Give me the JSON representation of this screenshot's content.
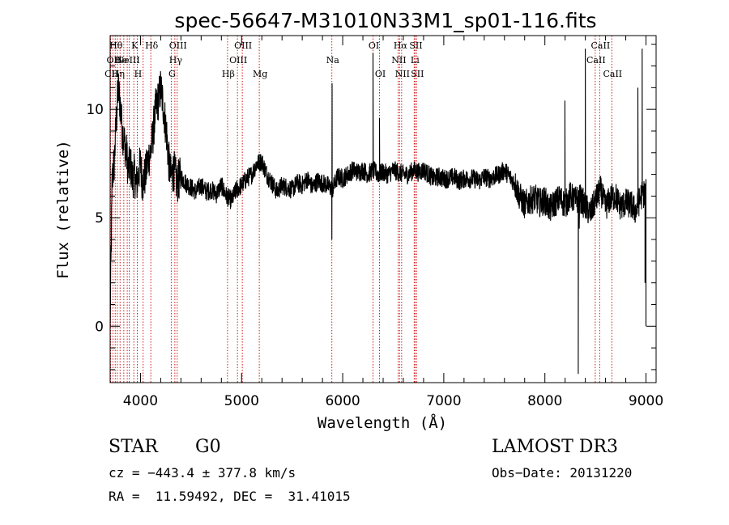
{
  "chart_data": {
    "type": "line",
    "title": "spec-56647-M31010N33M1_sp01-116.fits",
    "xlabel": "Wavelength (Å)",
    "ylabel": "Flux (relative)",
    "xlim": [
      3700,
      9100
    ],
    "ylim": [
      -2.6,
      13.4
    ],
    "xticks": [
      4000,
      5000,
      6000,
      7000,
      8000,
      9000
    ],
    "yticks": [
      0,
      5,
      10
    ],
    "grid": false,
    "spectrum_anchors": {
      "x": [
        3700,
        3720,
        3740,
        3760,
        3780,
        3800,
        3820,
        3840,
        3860,
        3880,
        3900,
        3920,
        3940,
        3960,
        3980,
        4000,
        4020,
        4050,
        4080,
        4100,
        4120,
        4150,
        4180,
        4200,
        4230,
        4260,
        4280,
        4300,
        4330,
        4360,
        4400,
        4450,
        4500,
        4550,
        4600,
        4650,
        4700,
        4750,
        4800,
        4850,
        4900,
        4950,
        5000,
        5050,
        5100,
        5150,
        5200,
        5250,
        5300,
        5350,
        5400,
        5450,
        5500,
        5550,
        5600,
        5650,
        5700,
        5750,
        5800,
        5850,
        5900,
        5950,
        6000,
        6050,
        6100,
        6150,
        6200,
        6250,
        6300,
        6350,
        6400,
        6450,
        6500,
        6550,
        6600,
        6650,
        6700,
        6750,
        6800,
        6850,
        6900,
        6950,
        7000,
        7050,
        7100,
        7150,
        7200,
        7250,
        7300,
        7350,
        7400,
        7450,
        7500,
        7550,
        7600,
        7650,
        7700,
        7750,
        7800,
        7850,
        7900,
        7950,
        8000,
        8050,
        8100,
        8150,
        8200,
        8250,
        8300,
        8350,
        8400,
        8450,
        8500,
        8550,
        8600,
        8650,
        8700,
        8750,
        8800,
        8850,
        8900,
        8950,
        9000
      ],
      "y": [
        0,
        6.8,
        7.5,
        9.5,
        11.0,
        10.2,
        9.0,
        8.5,
        8.0,
        7.2,
        7.5,
        6.8,
        7.0,
        6.5,
        7.0,
        7.5,
        6.6,
        7.0,
        7.8,
        8.0,
        8.7,
        10.0,
        10.5,
        11.0,
        10.0,
        8.8,
        7.6,
        6.9,
        7.2,
        6.6,
        6.9,
        6.6,
        6.4,
        6.2,
        6.5,
        6.2,
        6.3,
        6.1,
        6.5,
        6.0,
        5.8,
        6.3,
        6.5,
        6.8,
        7.0,
        7.5,
        7.6,
        7.0,
        6.6,
        6.2,
        6.5,
        6.4,
        6.3,
        6.6,
        6.5,
        6.8,
        6.4,
        6.7,
        6.6,
        6.5,
        6.3,
        6.9,
        6.8,
        7.0,
        7.2,
        7.1,
        7.2,
        7.0,
        7.2,
        7.0,
        7.1,
        7.0,
        7.2,
        7.1,
        7.0,
        7.0,
        7.2,
        7.1,
        7.2,
        7.0,
        6.8,
        6.9,
        6.8,
        6.8,
        6.9,
        6.7,
        6.8,
        6.8,
        6.8,
        6.7,
        6.9,
        6.8,
        6.9,
        7.0,
        7.2,
        6.9,
        6.6,
        6.0,
        5.6,
        5.8,
        5.9,
        5.7,
        5.8,
        5.4,
        5.7,
        5.9,
        5.6,
        6.0,
        5.8,
        5.9,
        5.5,
        5.2,
        5.8,
        6.3,
        5.5,
        5.9,
        6.0,
        5.5,
        5.7,
        5.6,
        5.3,
        6.0,
        6.2
      ],
      "noise": 0.45,
      "sample_step": 2
    },
    "spikes": [
      {
        "x": 5895,
        "y": 11.2
      },
      {
        "x": 5893,
        "y": 4.0
      },
      {
        "x": 6300,
        "y": 12.6
      },
      {
        "x": 6364,
        "y": 9.6
      },
      {
        "x": 8198,
        "y": 10.4
      },
      {
        "x": 8330,
        "y": -2.2
      },
      {
        "x": 8340,
        "y": 4.5
      },
      {
        "x": 8400,
        "y": 12.8
      },
      {
        "x": 8920,
        "y": 11.0
      },
      {
        "x": 8962,
        "y": 12.8
      },
      {
        "x": 8990,
        "y": 2.0
      },
      {
        "x": 9000,
        "y": 0
      }
    ],
    "line_markers": [
      {
        "x": 3705,
        "label": "CII",
        "row": 2
      },
      {
        "x": 3727,
        "label": "OII",
        "row": 1
      },
      {
        "x": 3750,
        "label": "Hθ",
        "row": 0
      },
      {
        "x": 3771,
        "label": "Hη",
        "row": 2
      },
      {
        "x": 3798,
        "label": "He",
        "row": 1
      },
      {
        "x": 3835,
        "label": "",
        "row": 0
      },
      {
        "x": 3869,
        "label": "NeIII",
        "row": 1
      },
      {
        "x": 3889,
        "label": "",
        "row": 2
      },
      {
        "x": 3934,
        "label": "K",
        "row": 0
      },
      {
        "x": 3968,
        "label": "H",
        "row": 2
      },
      {
        "x": 4026,
        "label": "",
        "row": 1
      },
      {
        "x": 4102,
        "label": "Hδ",
        "row": 0
      },
      {
        "x": 4304,
        "label": "G",
        "row": 2
      },
      {
        "x": 4340,
        "label": "Hγ",
        "row": 1
      },
      {
        "x": 4363,
        "label": "OIII",
        "row": 0
      },
      {
        "x": 4861,
        "label": "Hβ",
        "row": 2
      },
      {
        "x": 4959,
        "label": "OIII",
        "row": 1
      },
      {
        "x": 5007,
        "label": "OIII",
        "row": 0
      },
      {
        "x": 5175,
        "label": "Mg",
        "row": 2
      },
      {
        "x": 5893,
        "label": "Na",
        "row": 1
      },
      {
        "x": 6300,
        "label": "OI",
        "row": 0
      },
      {
        "x": 6364,
        "label": "OI",
        "row": 2
      },
      {
        "x": 6548,
        "label": "NII",
        "row": 1
      },
      {
        "x": 6563,
        "label": "Hα",
        "row": 0
      },
      {
        "x": 6583,
        "label": "NII",
        "row": 2
      },
      {
        "x": 6707,
        "label": "Li",
        "row": 1
      },
      {
        "x": 6716,
        "label": "SII",
        "row": 0
      },
      {
        "x": 6731,
        "label": "SII",
        "row": 2
      },
      {
        "x": 8498,
        "label": "CaII",
        "row": 1
      },
      {
        "x": 8542,
        "label": "CaII",
        "row": 0
      },
      {
        "x": 8662,
        "label": "CaII",
        "row": 2
      }
    ]
  },
  "info": {
    "class_label": "STAR",
    "subclass": "G0",
    "survey": "LAMOST DR3",
    "cz": "cz = −443.4 ± 377.8 km/s",
    "obs_date": "Obs−Date: 20131220",
    "coords": "RA =  11.59492, DEC =  31.41015"
  },
  "colors": {
    "spectrum": "#000000",
    "marker": "#cc0000",
    "axis": "#000000"
  }
}
